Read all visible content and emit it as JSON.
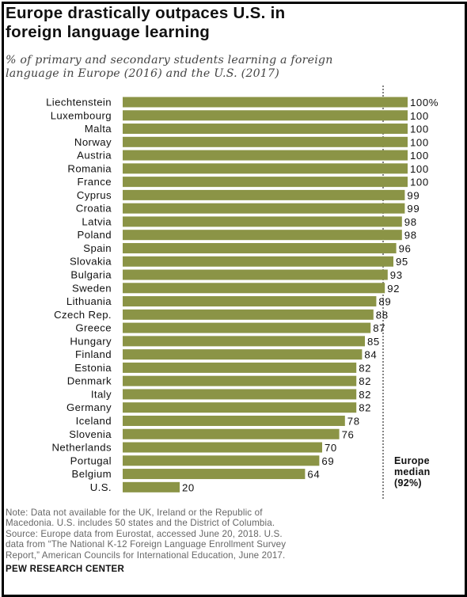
{
  "title_lines": [
    "Europe drastically outpaces U.S. in",
    "foreign language learning"
  ],
  "subtitle_lines": [
    "% of primary and secondary students learning a foreign",
    "language in Europe (2016) and the U.S. (2017)"
  ],
  "note_lines": [
    "Note: Data not available for the UK, Ireland or the Republic of",
    "Macedonia. U.S. includes 50 states and the District of Columbia.",
    "Source: Europe data from Eurostat, accessed June 20, 2018. U.S.",
    "data from “The National K-12 Foreign Language Enrollment Survey",
    "Report,” American Councils for International Education, June 2017."
  ],
  "brand": "PEW RESEARCH CENTER",
  "colors": {
    "bar": "#8b9446",
    "median_line": "#333333",
    "text": "#111111"
  },
  "chart_data": {
    "type": "bar",
    "orientation": "horizontal",
    "categories": [
      "Liechtenstein",
      "Luxembourg",
      "Malta",
      "Norway",
      "Austria",
      "Romania",
      "France",
      "Cyprus",
      "Croatia",
      "Latvia",
      "Poland",
      "Spain",
      "Slovakia",
      "Bulgaria",
      "Sweden",
      "Lithuania",
      "Czech Rep.",
      "Greece",
      "Hungary",
      "Finland",
      "Estonia",
      "Denmark",
      "Italy",
      "Germany",
      "Iceland",
      "Slovenia",
      "Netherlands",
      "Portugal",
      "Belgium",
      "U.S."
    ],
    "values": [
      100,
      100,
      100,
      100,
      100,
      100,
      100,
      99,
      99,
      98,
      98,
      96,
      95,
      93,
      92,
      89,
      88,
      87,
      85,
      84,
      82,
      82,
      82,
      82,
      78,
      76,
      70,
      69,
      64,
      20
    ],
    "value_labels": [
      "100%",
      "100",
      "100",
      "100",
      "100",
      "100",
      "100",
      "99",
      "99",
      "98",
      "98",
      "96",
      "95",
      "93",
      "92",
      "89",
      "88",
      "87",
      "85",
      "84",
      "82",
      "82",
      "82",
      "82",
      "78",
      "76",
      "70",
      "69",
      "64",
      "20"
    ],
    "xlim": [
      0,
      100
    ],
    "median": {
      "value": 92,
      "label_lines": [
        "Europe",
        "median",
        "(92%)"
      ]
    }
  }
}
